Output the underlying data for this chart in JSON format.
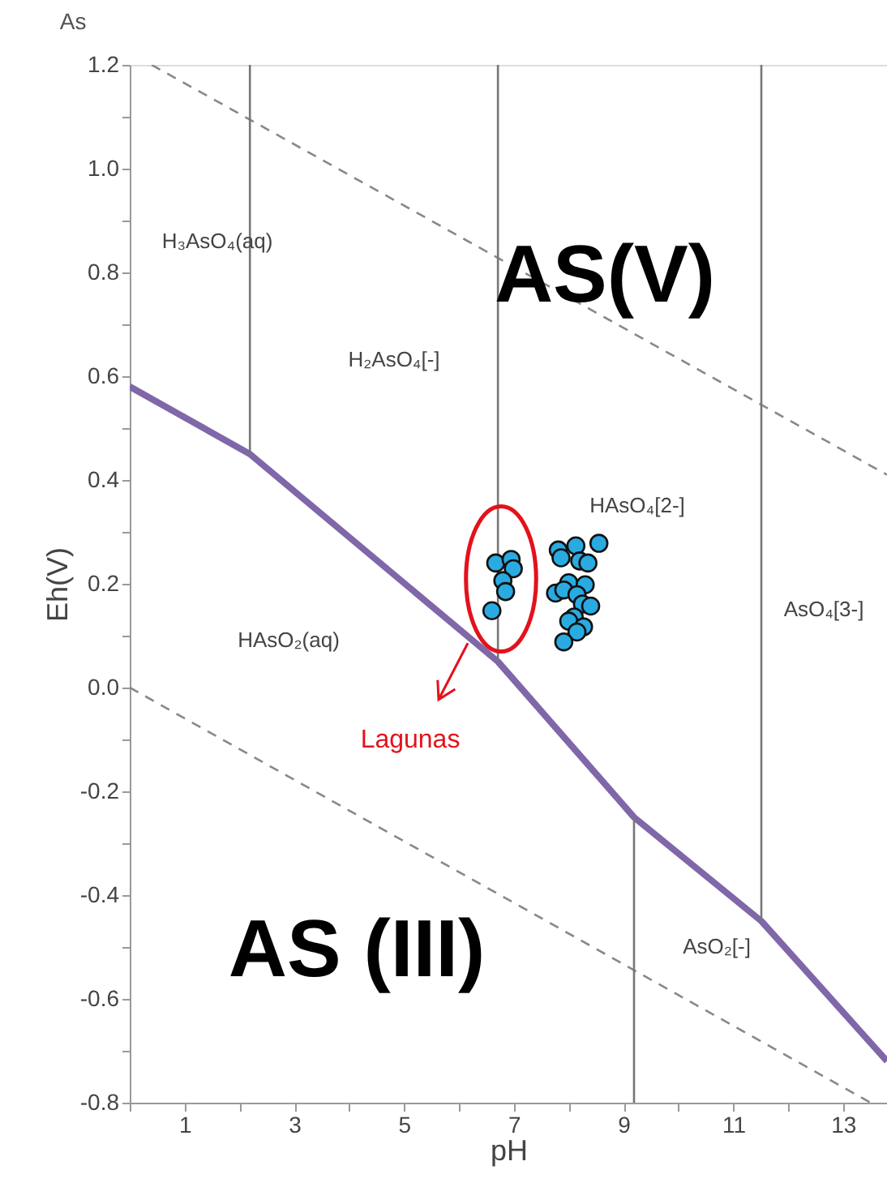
{
  "chart_data": {
    "type": "line",
    "title": "As",
    "xlabel": "pH",
    "ylabel": "Eh(V)",
    "xlim": [
      0,
      13.8
    ],
    "ylim": [
      -0.8,
      1.2
    ],
    "xticks": [
      {
        "value": 0,
        "label": null
      },
      1,
      {
        "value": 2,
        "label": null
      },
      3,
      {
        "value": 4,
        "label": null
      },
      5,
      {
        "value": 6,
        "label": null
      },
      7,
      {
        "value": 8,
        "label": null
      },
      9,
      {
        "value": 10,
        "label": null
      },
      11,
      {
        "value": 12,
        "label": null
      },
      13
    ],
    "yticks": [
      -0.8,
      {
        "value": -0.7,
        "label": null
      },
      -0.6,
      {
        "value": -0.5,
        "label": null
      },
      -0.4,
      {
        "value": -0.3,
        "label": null
      },
      -0.2,
      {
        "value": -0.1,
        "label": null
      },
      {
        "value": 0,
        "label": "0.0"
      },
      {
        "value": 0.1,
        "label": null
      },
      0.2,
      {
        "value": 0.3,
        "label": null
      },
      0.4,
      {
        "value": 0.5,
        "label": null
      },
      0.6,
      {
        "value": 0.7,
        "label": null
      },
      0.8,
      {
        "value": 0.9,
        "label": null
      },
      {
        "value": 1,
        "label": "1.0"
      },
      {
        "value": 1.1,
        "label": null
      },
      1.2
    ],
    "grid": false,
    "series": [
      {
        "type": "line",
        "color": "#7f67a9",
        "x": [
          0,
          2.19,
          6.71,
          9.19,
          11.51,
          13.8
        ],
        "values": [
          0.58,
          0.45,
          0.05,
          -0.25,
          -0.45,
          -0.72
        ]
      },
      {
        "type": "line",
        "color": "#888888",
        "line_style": "dashed",
        "x": [
          0.4,
          13.8
        ],
        "values": [
          1.2,
          0.41
        ]
      },
      {
        "type": "line",
        "color": "#888888",
        "line_style": "dashed",
        "x": [
          0,
          13.5
        ],
        "values": [
          0,
          -0.8
        ]
      },
      {
        "type": "line",
        "color": "#777777",
        "x": [
          2.19,
          2.19
        ],
        "values": [
          1.2,
          0.45
        ]
      },
      {
        "type": "line",
        "color": "#777777",
        "x": [
          6.71,
          6.71
        ],
        "values": [
          1.2,
          0.05
        ]
      },
      {
        "type": "line",
        "color": "#777777",
        "x": [
          11.51,
          11.51
        ],
        "values": [
          1.2,
          -0.45
        ]
      },
      {
        "type": "line",
        "color": "#777777",
        "x": [
          9.19,
          9.19
        ],
        "values": [
          -0.25,
          -0.8
        ]
      },
      {
        "type": "scatter",
        "color": "#29abe2",
        "marker": "circle",
        "x": [
          6.67,
          6.95,
          6.99,
          6.8,
          6.85,
          6.6,
          7.81,
          8.13,
          8.55,
          7.86,
          8.2,
          8.35,
          8.0,
          8.3,
          7.76,
          7.91,
          8.15,
          8.25,
          8.4,
          8.1,
          8.0,
          8.27,
          8.15,
          7.91
        ],
        "values": [
          0.24,
          0.247,
          0.229,
          0.206,
          0.185,
          0.148,
          0.265,
          0.273,
          0.278,
          0.25,
          0.244,
          0.24,
          0.202,
          0.198,
          0.182,
          0.188,
          0.179,
          0.161,
          0.157,
          0.136,
          0.128,
          0.117,
          0.107,
          0.088
        ]
      }
    ],
    "annotations": [
      "H₃AsO₄(aq)",
      "H₂AsO₄[-]",
      "AS(V)",
      "HAsO₄[2-]",
      "AsO₄[3-]",
      "HAsO₂(aq)",
      "Lagunas",
      "AS (III)",
      "AsO₂[-]"
    ]
  }
}
